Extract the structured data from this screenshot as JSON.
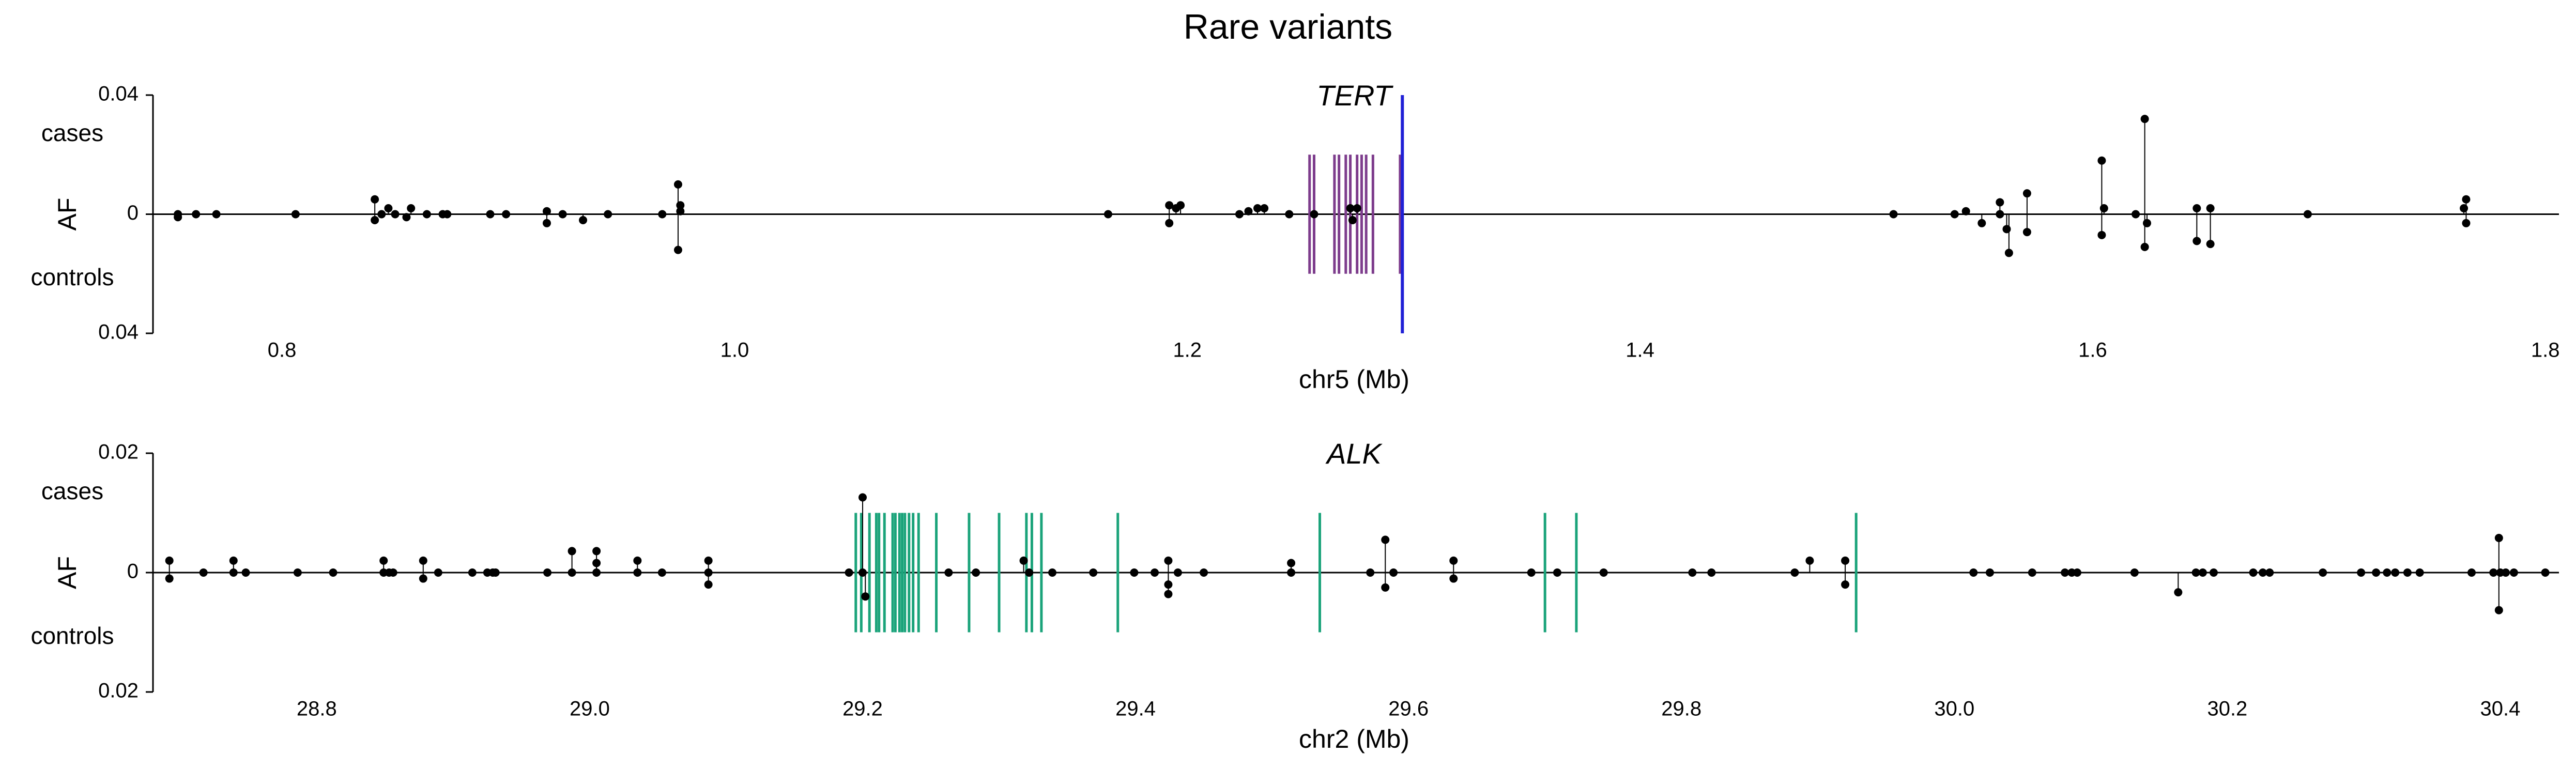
{
  "title": "Rare variants",
  "chart_data": [
    {
      "type": "scatter",
      "title": "TERT",
      "xlabel": "chr5 (Mb)",
      "ylabel": "AF",
      "cases_label": "cases",
      "controls_label": "controls",
      "xlim": [
        0.743,
        1.806
      ],
      "xticks": [
        0.8,
        {
          "value": 1,
          "label": "1.0"
        },
        1.2,
        1.4,
        1.6,
        1.8
      ],
      "ylim": [
        -0.04,
        0.04
      ],
      "yticks": [
        {
          "value": -0.04,
          "label": "0.04"
        },
        0,
        0.04
      ],
      "point_color": "#000000",
      "x": [
        0.754,
        0.754,
        0.762,
        0.771,
        0.806,
        0.841,
        0.841,
        0.844,
        0.847,
        0.85,
        0.855,
        0.857,
        0.864,
        0.871,
        0.873,
        0.892,
        0.899,
        0.917,
        0.917,
        0.924,
        0.933,
        0.944,
        0.968,
        0.975,
        0.975,
        0.976,
        0.976,
        1.165,
        1.192,
        1.192,
        1.195,
        1.197,
        1.223,
        1.227,
        1.231,
        1.234,
        1.245,
        1.256,
        1.272,
        1.273,
        1.275,
        1.512,
        1.539,
        1.544,
        1.551,
        1.559,
        1.559,
        1.562,
        1.563,
        1.571,
        1.571,
        1.604,
        1.604,
        1.605,
        1.619,
        1.623,
        1.623,
        1.624,
        1.646,
        1.646,
        1.652,
        1.652,
        1.695,
        1.764,
        1.765,
        1.765
      ],
      "y": [
        0,
        -0.001,
        0,
        0,
        0,
        0.005,
        -0.002,
        0,
        0.002,
        0,
        -0.001,
        0.002,
        0,
        0,
        0,
        0,
        0,
        -0.003,
        0.001,
        0,
        -0.002,
        0,
        0,
        0.01,
        -0.012,
        0.003,
        0.001,
        0,
        0.003,
        -0.003,
        0.002,
        0.003,
        0,
        0.001,
        0.002,
        0.002,
        0,
        0,
        0.002,
        -0.002,
        0.002,
        0,
        0,
        0.001,
        -0.003,
        0,
        0.004,
        -0.005,
        -0.013,
        0.007,
        -0.006,
        0.018,
        -0.007,
        0.002,
        0,
        0.032,
        -0.011,
        -0.003,
        0.002,
        -0.009,
        0.002,
        -0.01,
        0,
        0.002,
        0.005,
        -0.003
      ],
      "exons": [
        1.254,
        1.256,
        1.265,
        1.267,
        1.27,
        1.272,
        1.275,
        1.277,
        1.279,
        1.282,
        1.294
      ],
      "exon_color": "#7d3c8c",
      "marker_x": 1.295,
      "marker_color": "#1f1fd6"
    },
    {
      "type": "scatter",
      "title": "ALK",
      "xlabel": "chr2 (Mb)",
      "ylabel": "AF",
      "cases_label": "cases",
      "controls_label": "controls",
      "xlim": [
        28.68,
        30.443
      ],
      "xticks": [
        28.8,
        {
          "value": 29,
          "label": "29.0"
        },
        29.2,
        29.4,
        29.6,
        29.8,
        {
          "value": 30,
          "label": "30.0"
        },
        30.2,
        30.4
      ],
      "ylim": [
        -0.02,
        0.02
      ],
      "yticks": [
        {
          "value": -0.02,
          "label": "0.02"
        },
        0,
        0.02
      ],
      "point_color": "#000000",
      "x": [
        28.692,
        28.692,
        28.717,
        28.739,
        28.739,
        28.748,
        28.786,
        28.812,
        28.849,
        28.849,
        28.853,
        28.856,
        28.878,
        28.878,
        28.889,
        28.914,
        28.925,
        28.929,
        28.931,
        28.969,
        28.987,
        28.987,
        29.005,
        29.005,
        29.005,
        29.035,
        29.035,
        29.053,
        29.087,
        29.087,
        29.087,
        29.19,
        29.2,
        29.2,
        29.202,
        29.263,
        29.283,
        29.318,
        29.322,
        29.339,
        29.369,
        29.399,
        29.414,
        29.424,
        29.424,
        29.424,
        29.431,
        29.45,
        29.514,
        29.514,
        29.572,
        29.583,
        29.583,
        29.589,
        29.633,
        29.633,
        29.69,
        29.709,
        29.743,
        29.808,
        29.822,
        29.883,
        29.894,
        29.92,
        29.92,
        30.014,
        30.026,
        30.057,
        30.081,
        30.086,
        30.09,
        30.132,
        30.164,
        30.177,
        30.182,
        30.19,
        30.219,
        30.226,
        30.231,
        30.27,
        30.298,
        30.309,
        30.317,
        30.323,
        30.332,
        30.341,
        30.379,
        30.395,
        30.4,
        30.399,
        30.399,
        30.404,
        30.41,
        30.433
      ],
      "y": [
        0.002,
        -0.001,
        0,
        0.002,
        0,
        0,
        0,
        0,
        0.002,
        0,
        0,
        0,
        0.002,
        -0.001,
        0,
        0,
        0,
        0,
        0,
        0,
        0.0036,
        0,
        0.0036,
        0.0016,
        0,
        0.002,
        0,
        0,
        0.002,
        0,
        -0.002,
        0,
        0.0126,
        0,
        -0.004,
        0,
        0,
        0.002,
        0,
        0,
        0,
        0,
        0,
        0.002,
        -0.002,
        -0.0036,
        0,
        0,
        0.0016,
        0,
        0,
        0.0055,
        -0.0025,
        0,
        0.002,
        -0.001,
        0,
        0,
        0,
        0,
        0,
        0,
        0.002,
        0.002,
        -0.002,
        0,
        0,
        0,
        0,
        0,
        0,
        0,
        -0.0033,
        0,
        0,
        0,
        0,
        0,
        0,
        0,
        0,
        0,
        0,
        0,
        0,
        0,
        0,
        0,
        0,
        0.0058,
        -0.0063,
        0,
        0,
        0
      ],
      "exons": [
        29.195,
        29.199,
        29.205,
        29.21,
        29.212,
        29.216,
        29.222,
        29.224,
        29.227,
        29.229,
        29.231,
        29.234,
        29.237,
        29.241,
        29.254,
        29.278,
        29.3,
        29.32,
        29.324,
        29.331,
        29.387,
        29.535,
        29.7,
        29.723,
        29.928
      ],
      "exon_color": "#1aa37a"
    }
  ]
}
